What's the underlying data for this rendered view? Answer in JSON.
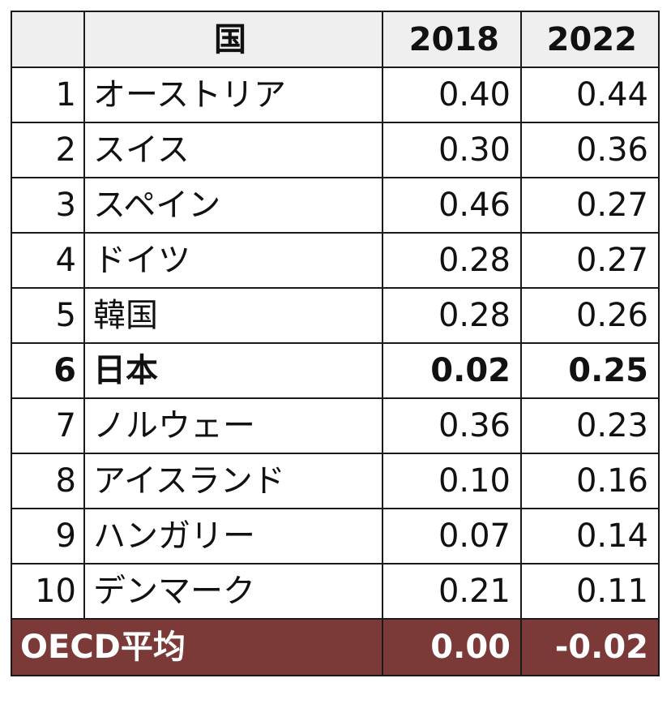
{
  "chart_data": {
    "type": "table",
    "columns": [
      "",
      "国",
      "2018",
      "2022"
    ],
    "rows": [
      {
        "rank": "1",
        "country": "オーストリア",
        "v2018": "0.40",
        "v2022": "0.44"
      },
      {
        "rank": "2",
        "country": "スイス",
        "v2018": "0.30",
        "v2022": "0.36"
      },
      {
        "rank": "3",
        "country": "スペイン",
        "v2018": "0.46",
        "v2022": "0.27"
      },
      {
        "rank": "4",
        "country": "ドイツ",
        "v2018": "0.28",
        "v2022": "0.27"
      },
      {
        "rank": "5",
        "country": "韓国",
        "v2018": "0.28",
        "v2022": "0.26"
      },
      {
        "rank": "6",
        "country": "日本",
        "v2018": "0.02",
        "v2022": "0.25",
        "highlight": true
      },
      {
        "rank": "7",
        "country": "ノルウェー",
        "v2018": "0.36",
        "v2022": "0.23"
      },
      {
        "rank": "8",
        "country": "アイスランド",
        "v2018": "0.10",
        "v2022": "0.16"
      },
      {
        "rank": "9",
        "country": "ハンガリー",
        "v2018": "0.07",
        "v2022": "0.14"
      },
      {
        "rank": "10",
        "country": "デンマーク",
        "v2018": "0.21",
        "v2022": "0.11"
      }
    ],
    "summary_row": {
      "label": "OECD平均",
      "v2018": "0.00",
      "v2022": "-0.02"
    }
  },
  "colors": {
    "header_bg": "#efefef",
    "summary_bg": "#7b3a37",
    "summary_text": "#ffffff",
    "border": "#1a1a1a"
  }
}
